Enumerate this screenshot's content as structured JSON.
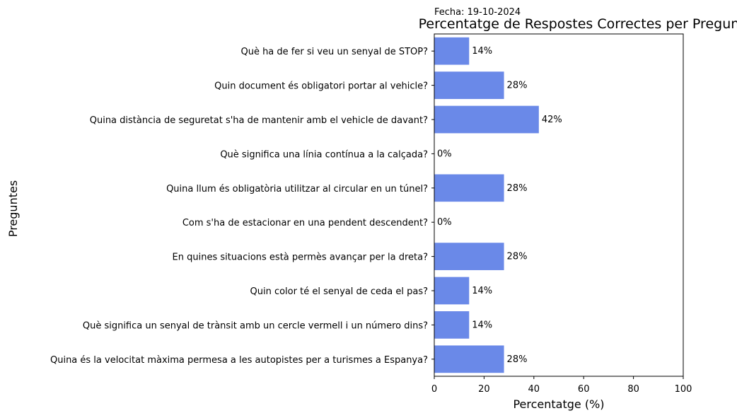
{
  "date_label": "Fecha: 19-10-2024",
  "chart_data": {
    "type": "bar",
    "orientation": "horizontal",
    "title": "Percentatge de Respostes Correctes per Pregunta",
    "xlabel": "Percentatge (%)",
    "ylabel": "Preguntes",
    "xlim": [
      0,
      100
    ],
    "xticks": [
      "0",
      "20",
      "40",
      "60",
      "80",
      "100"
    ],
    "bar_color": "#6a89e8",
    "categories": [
      "Què ha de fer si veu un senyal de STOP?",
      "Quin document és obligatori portar al vehicle?",
      "Quina distància de seguretat s'ha de mantenir amb el vehicle de davant?",
      "Què significa una línia contínua a la calçada?",
      "Quina llum és obligatòria utilitzar al circular en un túnel?",
      "Com s'ha de estacionar en una pendent descendent?",
      "En quines situacions està permès avançar per la dreta?",
      "Quin color té el senyal de ceda el pas?",
      "Què significa un senyal de trànsit amb un cercle vermell i un número dins?",
      "Quina és la velocitat màxima permesa a les autopistes per a turismes a Espanya?"
    ],
    "values": [
      14,
      28,
      42,
      0,
      28,
      0,
      28,
      14,
      14,
      28
    ],
    "value_labels": [
      "14%",
      "28%",
      "42%",
      "0%",
      "28%",
      "0%",
      "28%",
      "14%",
      "14%",
      "28%"
    ],
    "grid": false
  }
}
